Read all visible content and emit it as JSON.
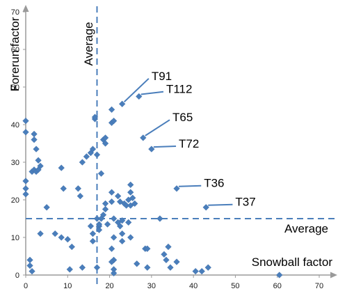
{
  "chart_data": {
    "type": "scatter",
    "title": "",
    "xlabel": "Snowball factor",
    "ylabel": "Forerun factor",
    "xlim": [
      0,
      70
    ],
    "ylim": [
      0,
      70
    ],
    "xticks": [
      "0",
      "10",
      "20",
      "30",
      "40",
      "50",
      "60",
      "70"
    ],
    "yticks": [
      "0",
      "10",
      "20",
      "30",
      "40",
      "50",
      "60",
      "70"
    ],
    "grid": false,
    "marker": "diamond",
    "colors": {
      "points": "#4a7ebb",
      "axis": "#9a9a9a",
      "average_lines": "#4a7ebb"
    },
    "averages": {
      "x": 17,
      "y": 15,
      "x_label": "Average",
      "y_label": "Average"
    },
    "annotations": [
      {
        "label": "T91",
        "point": [
          23,
          45.5
        ],
        "text_at": [
          30,
          53
        ]
      },
      {
        "label": "T112",
        "point": [
          27,
          47.5
        ],
        "text_at": [
          33.5,
          49.5
        ]
      },
      {
        "label": "T65",
        "point": [
          28,
          36.5
        ],
        "text_at": [
          35,
          42
        ]
      },
      {
        "label": "T72",
        "point": [
          30,
          33.5
        ],
        "text_at": [
          36.5,
          35
        ]
      },
      {
        "label": "T36",
        "point": [
          36,
          23
        ],
        "text_at": [
          42.5,
          24.5
        ]
      },
      {
        "label": "T37",
        "point": [
          43,
          18
        ],
        "text_at": [
          50,
          19.5
        ]
      }
    ],
    "points": [
      [
        0,
        41
      ],
      [
        0,
        38
      ],
      [
        0,
        25
      ],
      [
        0,
        23
      ],
      [
        0,
        21.5
      ],
      [
        1,
        4
      ],
      [
        1,
        2.5
      ],
      [
        1.5,
        1
      ],
      [
        1.5,
        27.5
      ],
      [
        2,
        28
      ],
      [
        2.5,
        27.5
      ],
      [
        2,
        37.5
      ],
      [
        2,
        36
      ],
      [
        2.5,
        33.5
      ],
      [
        3,
        30.5
      ],
      [
        3.5,
        29
      ],
      [
        3,
        28
      ],
      [
        3.5,
        11
      ],
      [
        5,
        18
      ],
      [
        7,
        11
      ],
      [
        8.5,
        10
      ],
      [
        8.5,
        28.5
      ],
      [
        9,
        23
      ],
      [
        10,
        9.5
      ],
      [
        11,
        7.5
      ],
      [
        10.5,
        1.5
      ],
      [
        12.5,
        23
      ],
      [
        13,
        21
      ],
      [
        13.5,
        2
      ],
      [
        13.5,
        30
      ],
      [
        14.5,
        31.5
      ],
      [
        15.5,
        32.5
      ],
      [
        16,
        33.5
      ],
      [
        15.5,
        13
      ],
      [
        16,
        11
      ],
      [
        16,
        9
      ],
      [
        17,
        32
      ],
      [
        17,
        15
      ],
      [
        17,
        2
      ],
      [
        16.5,
        41.5
      ],
      [
        16.5,
        42
      ],
      [
        17.5,
        13
      ],
      [
        17.5,
        13.5
      ],
      [
        17.5,
        12
      ],
      [
        18,
        27
      ],
      [
        18,
        15
      ],
      [
        18.5,
        36
      ],
      [
        18.5,
        16
      ],
      [
        19,
        36.5
      ],
      [
        19,
        35
      ],
      [
        19,
        19
      ],
      [
        19,
        17.5
      ],
      [
        19.5,
        13.5
      ],
      [
        20.5,
        40.5
      ],
      [
        21,
        41
      ],
      [
        20.5,
        44
      ],
      [
        20.5,
        22
      ],
      [
        20.5,
        19.5
      ],
      [
        21,
        15
      ],
      [
        21,
        10
      ],
      [
        20.5,
        7
      ],
      [
        21,
        4
      ],
      [
        20.5,
        3.5
      ],
      [
        21,
        1.5
      ],
      [
        21,
        0.5
      ],
      [
        22,
        21
      ],
      [
        22.5,
        19.5
      ],
      [
        22,
        14
      ],
      [
        22.5,
        13
      ],
      [
        23,
        14.5
      ],
      [
        23,
        11
      ],
      [
        23,
        9
      ],
      [
        23.5,
        19
      ],
      [
        24,
        18.5
      ],
      [
        24.5,
        20
      ],
      [
        25,
        24
      ],
      [
        25,
        22
      ],
      [
        25,
        18.5
      ],
      [
        25.5,
        20.5
      ],
      [
        25,
        10
      ],
      [
        24.5,
        14
      ],
      [
        26,
        19
      ],
      [
        26.5,
        3
      ],
      [
        28.5,
        7
      ],
      [
        29,
        7
      ],
      [
        29,
        2
      ],
      [
        32,
        15
      ],
      [
        33,
        5.5
      ],
      [
        33.5,
        4
      ],
      [
        34,
        7.5
      ],
      [
        34.5,
        2
      ],
      [
        36,
        3.5
      ],
      [
        40.5,
        1
      ],
      [
        42,
        1
      ],
      [
        43.5,
        2
      ],
      [
        60.5,
        0
      ]
    ]
  }
}
